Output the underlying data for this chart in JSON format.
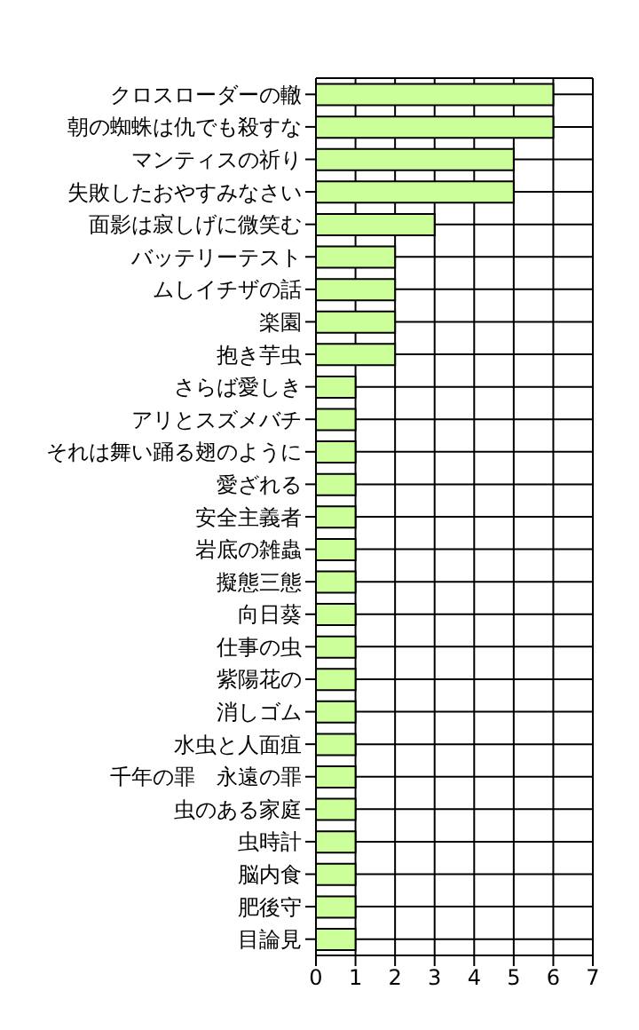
{
  "chart_data": {
    "type": "bar",
    "orientation": "horizontal",
    "categories": [
      "クロスローダーの轍",
      "朝の蜘蛛は仇でも殺すな",
      "マンティスの祈り",
      "失敗したおやすみなさい",
      "面影は寂しげに微笑む",
      "バッテリーテスト",
      "ムしイチザの話",
      "楽園",
      "抱き芋虫",
      "さらば愛しき",
      "アリとスズメバチ",
      "それは舞い踊る翅のように",
      "愛ざれる",
      "安全主義者",
      "岩底の雑蟲",
      "擬態三態",
      "向日葵",
      "仕事の虫",
      "紫陽花の",
      "消しゴム",
      "水虫と人面疽",
      "千年の罪　永遠の罪",
      "虫のある家庭",
      "虫時計",
      "脳内食",
      "肥後守",
      "目論見"
    ],
    "values": [
      6,
      6,
      5,
      5,
      3,
      2,
      2,
      2,
      2,
      1,
      1,
      1,
      1,
      1,
      1,
      1,
      1,
      1,
      1,
      1,
      1,
      1,
      1,
      1,
      1,
      1,
      1
    ],
    "color": "#ccff99",
    "xlim": [
      0,
      7
    ],
    "xticks": [
      0,
      1,
      2,
      3,
      4,
      5,
      6,
      7
    ],
    "grid": true
  }
}
